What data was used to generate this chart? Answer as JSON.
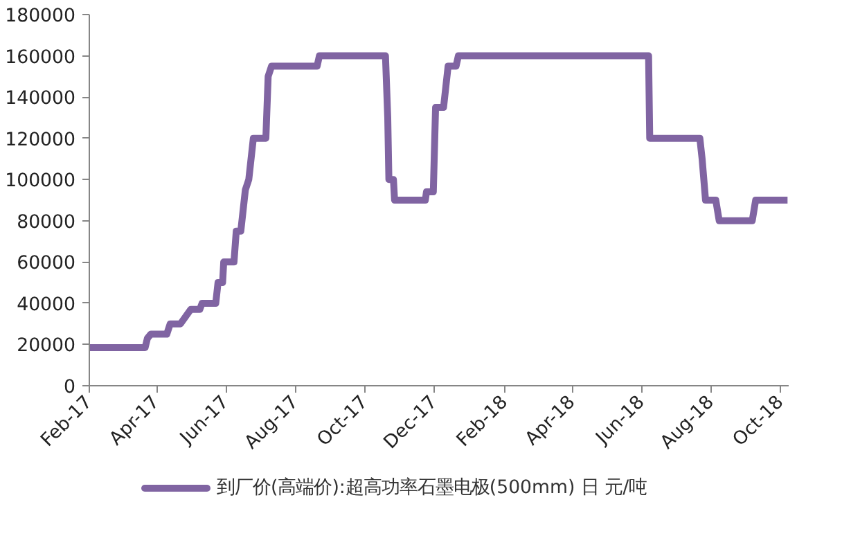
{
  "chart_data": {
    "type": "line",
    "legend": "bottom",
    "grid": false,
    "marker": "none",
    "line_style": "solid",
    "x": [
      "2017-02-01",
      "2017-03-22",
      "2017-03-24",
      "2017-03-27",
      "2017-04-10",
      "2017-04-13",
      "2017-04-22",
      "2017-05-01",
      "2017-05-09",
      "2017-05-11",
      "2017-05-23",
      "2017-05-25",
      "2017-05-29",
      "2017-05-30",
      "2017-06-08",
      "2017-06-10",
      "2017-06-14",
      "2017-06-18",
      "2017-06-21",
      "2017-06-25",
      "2017-07-06",
      "2017-07-08",
      "2017-07-11",
      "2017-08-20",
      "2017-08-22",
      "2017-10-19",
      "2017-10-21",
      "2017-10-22",
      "2017-10-26",
      "2017-10-27",
      "2017-11-23",
      "2017-11-24",
      "2017-11-30",
      "2017-12-02",
      "2017-12-09",
      "2017-12-13",
      "2017-12-20",
      "2017-12-22",
      "2018-06-07",
      "2018-06-08",
      "2018-07-22",
      "2018-07-24",
      "2018-07-27",
      "2018-08-05",
      "2018-08-08",
      "2018-09-06",
      "2018-09-09",
      "2018-10-07"
    ],
    "series": [
      {
        "name": "到厂价(高端价):超高功率石墨电极(500mm) 日 元/吨",
        "color": "#8064a2",
        "values": [
          18500,
          18500,
          23000,
          25000,
          25000,
          30000,
          30000,
          37000,
          37000,
          40000,
          40000,
          50000,
          50000,
          60000,
          60000,
          75000,
          75000,
          95000,
          100000,
          120000,
          120000,
          150000,
          155000,
          155000,
          160000,
          160000,
          130000,
          100000,
          100000,
          90000,
          90000,
          94000,
          94000,
          135000,
          135000,
          155000,
          155000,
          160000,
          160000,
          120000,
          120000,
          110000,
          90000,
          90000,
          80000,
          80000,
          90000,
          90000
        ]
      }
    ],
    "xlim": [
      "2017-02-01",
      "2018-10-08"
    ],
    "xticks": [
      {
        "value": "2017-02-01",
        "label": "Feb-17"
      },
      {
        "value": "2017-04-01",
        "label": "Apr-17"
      },
      {
        "value": "2017-06-01",
        "label": "Jun-17"
      },
      {
        "value": "2017-08-01",
        "label": "Aug-17"
      },
      {
        "value": "2017-10-01",
        "label": "Oct-17"
      },
      {
        "value": "2017-12-01",
        "label": "Dec-17"
      },
      {
        "value": "2018-02-01",
        "label": "Feb-18"
      },
      {
        "value": "2018-04-01",
        "label": "Apr-18"
      },
      {
        "value": "2018-06-01",
        "label": "Jun-18"
      },
      {
        "value": "2018-08-01",
        "label": "Aug-18"
      },
      {
        "value": "2018-10-01",
        "label": "Oct-18"
      }
    ],
    "ylim": [
      0,
      180000
    ],
    "yticks": [
      0,
      20000,
      40000,
      60000,
      80000,
      100000,
      120000,
      140000,
      160000,
      180000
    ]
  }
}
